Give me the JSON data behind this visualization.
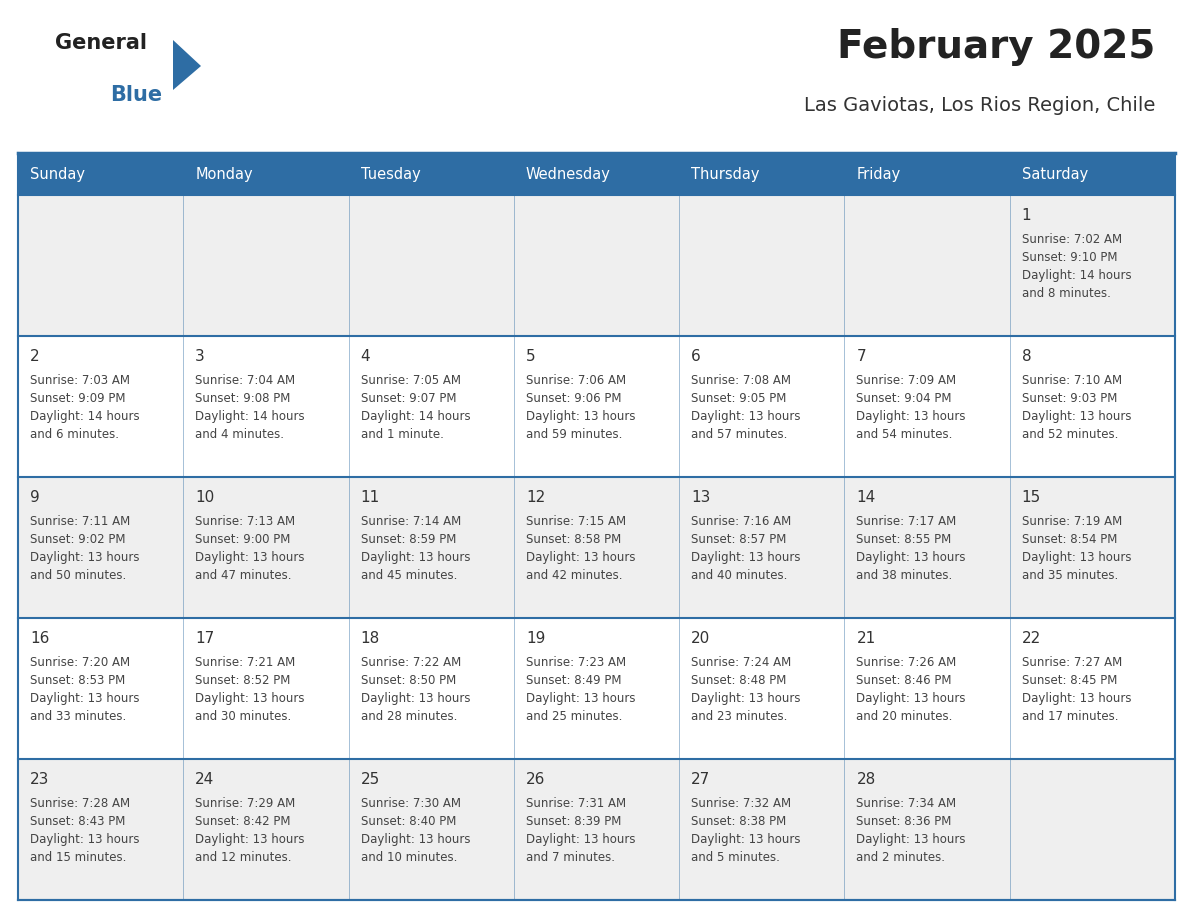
{
  "title": "February 2025",
  "subtitle": "Las Gaviotas, Los Rios Region, Chile",
  "header_bg": "#2E6DA4",
  "header_text_color": "#FFFFFF",
  "cell_bg_gray": "#EFEFEF",
  "cell_bg_white": "#FFFFFF",
  "border_color": "#2E6DA4",
  "text_color": "#444444",
  "day_number_color": "#333333",
  "days_of_week": [
    "Sunday",
    "Monday",
    "Tuesday",
    "Wednesday",
    "Thursday",
    "Friday",
    "Saturday"
  ],
  "weeks": [
    [
      {
        "day": "",
        "info": ""
      },
      {
        "day": "",
        "info": ""
      },
      {
        "day": "",
        "info": ""
      },
      {
        "day": "",
        "info": ""
      },
      {
        "day": "",
        "info": ""
      },
      {
        "day": "",
        "info": ""
      },
      {
        "day": "1",
        "info": "Sunrise: 7:02 AM\nSunset: 9:10 PM\nDaylight: 14 hours\nand 8 minutes."
      }
    ],
    [
      {
        "day": "2",
        "info": "Sunrise: 7:03 AM\nSunset: 9:09 PM\nDaylight: 14 hours\nand 6 minutes."
      },
      {
        "day": "3",
        "info": "Sunrise: 7:04 AM\nSunset: 9:08 PM\nDaylight: 14 hours\nand 4 minutes."
      },
      {
        "day": "4",
        "info": "Sunrise: 7:05 AM\nSunset: 9:07 PM\nDaylight: 14 hours\nand 1 minute."
      },
      {
        "day": "5",
        "info": "Sunrise: 7:06 AM\nSunset: 9:06 PM\nDaylight: 13 hours\nand 59 minutes."
      },
      {
        "day": "6",
        "info": "Sunrise: 7:08 AM\nSunset: 9:05 PM\nDaylight: 13 hours\nand 57 minutes."
      },
      {
        "day": "7",
        "info": "Sunrise: 7:09 AM\nSunset: 9:04 PM\nDaylight: 13 hours\nand 54 minutes."
      },
      {
        "day": "8",
        "info": "Sunrise: 7:10 AM\nSunset: 9:03 PM\nDaylight: 13 hours\nand 52 minutes."
      }
    ],
    [
      {
        "day": "9",
        "info": "Sunrise: 7:11 AM\nSunset: 9:02 PM\nDaylight: 13 hours\nand 50 minutes."
      },
      {
        "day": "10",
        "info": "Sunrise: 7:13 AM\nSunset: 9:00 PM\nDaylight: 13 hours\nand 47 minutes."
      },
      {
        "day": "11",
        "info": "Sunrise: 7:14 AM\nSunset: 8:59 PM\nDaylight: 13 hours\nand 45 minutes."
      },
      {
        "day": "12",
        "info": "Sunrise: 7:15 AM\nSunset: 8:58 PM\nDaylight: 13 hours\nand 42 minutes."
      },
      {
        "day": "13",
        "info": "Sunrise: 7:16 AM\nSunset: 8:57 PM\nDaylight: 13 hours\nand 40 minutes."
      },
      {
        "day": "14",
        "info": "Sunrise: 7:17 AM\nSunset: 8:55 PM\nDaylight: 13 hours\nand 38 minutes."
      },
      {
        "day": "15",
        "info": "Sunrise: 7:19 AM\nSunset: 8:54 PM\nDaylight: 13 hours\nand 35 minutes."
      }
    ],
    [
      {
        "day": "16",
        "info": "Sunrise: 7:20 AM\nSunset: 8:53 PM\nDaylight: 13 hours\nand 33 minutes."
      },
      {
        "day": "17",
        "info": "Sunrise: 7:21 AM\nSunset: 8:52 PM\nDaylight: 13 hours\nand 30 minutes."
      },
      {
        "day": "18",
        "info": "Sunrise: 7:22 AM\nSunset: 8:50 PM\nDaylight: 13 hours\nand 28 minutes."
      },
      {
        "day": "19",
        "info": "Sunrise: 7:23 AM\nSunset: 8:49 PM\nDaylight: 13 hours\nand 25 minutes."
      },
      {
        "day": "20",
        "info": "Sunrise: 7:24 AM\nSunset: 8:48 PM\nDaylight: 13 hours\nand 23 minutes."
      },
      {
        "day": "21",
        "info": "Sunrise: 7:26 AM\nSunset: 8:46 PM\nDaylight: 13 hours\nand 20 minutes."
      },
      {
        "day": "22",
        "info": "Sunrise: 7:27 AM\nSunset: 8:45 PM\nDaylight: 13 hours\nand 17 minutes."
      }
    ],
    [
      {
        "day": "23",
        "info": "Sunrise: 7:28 AM\nSunset: 8:43 PM\nDaylight: 13 hours\nand 15 minutes."
      },
      {
        "day": "24",
        "info": "Sunrise: 7:29 AM\nSunset: 8:42 PM\nDaylight: 13 hours\nand 12 minutes."
      },
      {
        "day": "25",
        "info": "Sunrise: 7:30 AM\nSunset: 8:40 PM\nDaylight: 13 hours\nand 10 minutes."
      },
      {
        "day": "26",
        "info": "Sunrise: 7:31 AM\nSunset: 8:39 PM\nDaylight: 13 hours\nand 7 minutes."
      },
      {
        "day": "27",
        "info": "Sunrise: 7:32 AM\nSunset: 8:38 PM\nDaylight: 13 hours\nand 5 minutes."
      },
      {
        "day": "28",
        "info": "Sunrise: 7:34 AM\nSunset: 8:36 PM\nDaylight: 13 hours\nand 2 minutes."
      },
      {
        "day": "",
        "info": ""
      }
    ]
  ],
  "logo_general_color": "#222222",
  "logo_blue_color": "#2E6DA4",
  "logo_triangle_color": "#2E6DA4"
}
